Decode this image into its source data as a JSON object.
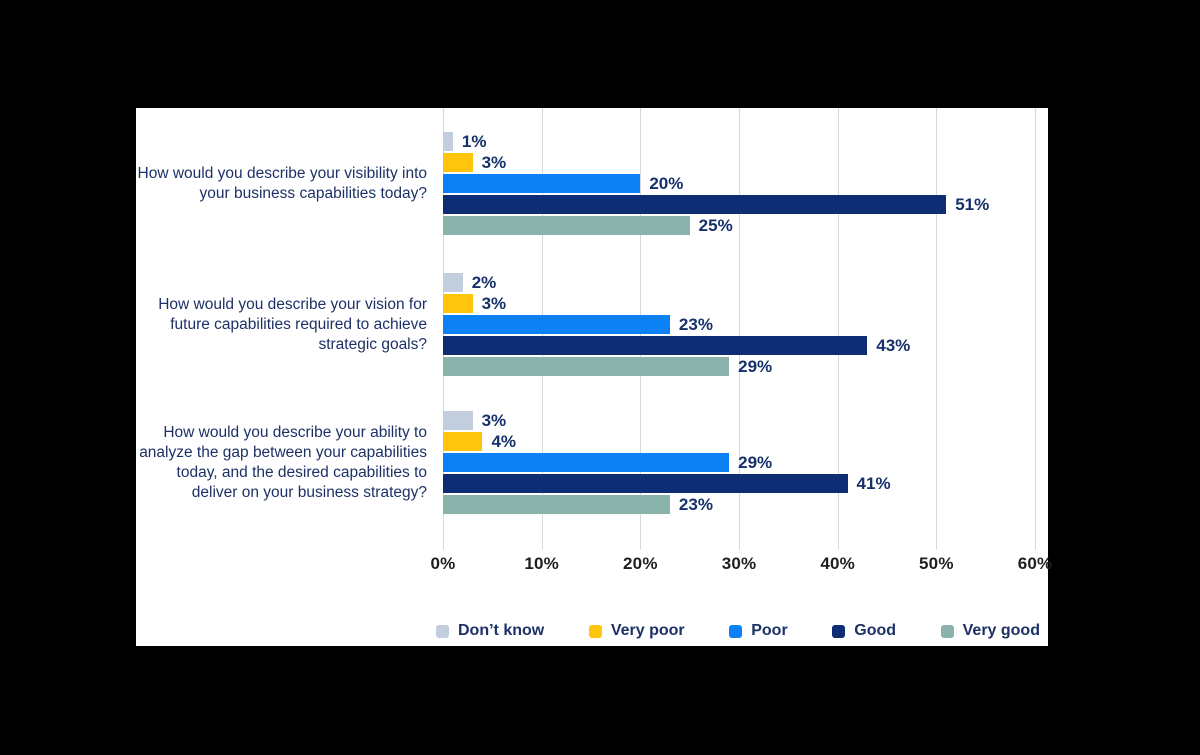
{
  "canvas": {
    "background": "#000000",
    "panel_background": "#ffffff"
  },
  "chart_data": {
    "type": "bar",
    "orientation": "horizontal",
    "title": "",
    "categories": [
      "How would you describe your visibility into your business capabilities today?",
      "How would you describe your vision for future capabilities required to achieve strategic goals?",
      "How would you describe your ability to analyze the gap between your capabilities today, and the desired capabilities to deliver on your business strategy?"
    ],
    "series": [
      {
        "name": "Don’t know",
        "color": "#c2cdde",
        "values": [
          1,
          2,
          3
        ]
      },
      {
        "name": "Very poor",
        "color": "#ffc40c",
        "values": [
          3,
          3,
          4
        ]
      },
      {
        "name": "Poor",
        "color": "#0b81f5",
        "values": [
          20,
          23,
          29
        ]
      },
      {
        "name": "Good",
        "color": "#0e2d74",
        "values": [
          51,
          43,
          41
        ]
      },
      {
        "name": "Very good",
        "color": "#8ab3ab",
        "values": [
          25,
          29,
          23
        ]
      }
    ],
    "value_label_suffix": "%",
    "x_axis": {
      "tick_labels": [
        "0%",
        "10%",
        "20%",
        "30%",
        "40%",
        "50%",
        "60%"
      ],
      "min": 0,
      "max": 60
    },
    "grid": true,
    "gridline_color": "#d8d8d8",
    "legend_position": "bottom",
    "text_colors": {
      "question": "#1d3166",
      "value_label": "#16306a",
      "axis_label": "#1f1f1f",
      "legend_label": "#1d3166"
    }
  }
}
